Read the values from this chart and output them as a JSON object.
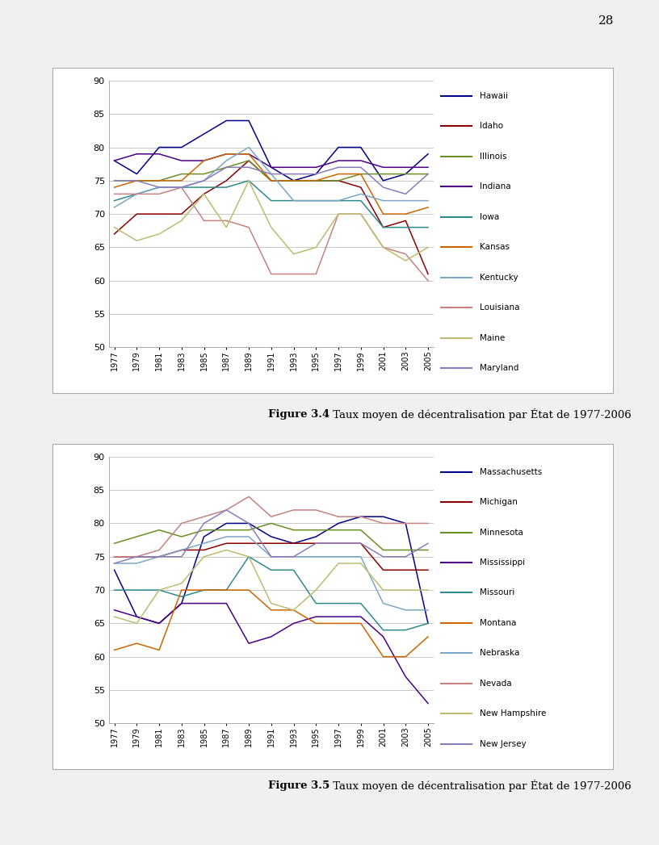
{
  "years": [
    1977,
    1979,
    1981,
    1983,
    1985,
    1987,
    1989,
    1991,
    1993,
    1995,
    1997,
    1999,
    2001,
    2003,
    2005
  ],
  "fig34": {
    "title_bold": "Figure 3.4",
    "title_normal": " Taux moyen de décentralisation par État de 1977-2006",
    "series": {
      "Hawaii": [
        78,
        76,
        80,
        80,
        82,
        84,
        84,
        77,
        75,
        76,
        80,
        80,
        75,
        76,
        79
      ],
      "Idaho": [
        67,
        70,
        70,
        70,
        73,
        75,
        78,
        75,
        75,
        75,
        75,
        74,
        68,
        69,
        61
      ],
      "Illinois": [
        75,
        75,
        75,
        76,
        76,
        77,
        78,
        75,
        75,
        75,
        75,
        76,
        76,
        76,
        76
      ],
      "Indiana": [
        78,
        79,
        79,
        78,
        78,
        79,
        79,
        77,
        77,
        77,
        78,
        78,
        77,
        77,
        77
      ],
      "Iowa": [
        72,
        73,
        74,
        74,
        74,
        74,
        75,
        72,
        72,
        72,
        72,
        72,
        68,
        68,
        68
      ],
      "Kansas": [
        74,
        75,
        75,
        75,
        78,
        79,
        79,
        75,
        75,
        75,
        76,
        76,
        70,
        70,
        71
      ],
      "Kentucky": [
        71,
        73,
        74,
        74,
        75,
        78,
        80,
        76,
        72,
        72,
        72,
        73,
        72,
        72,
        72
      ],
      "Louisiana": [
        73,
        73,
        73,
        74,
        69,
        69,
        68,
        61,
        61,
        61,
        70,
        70,
        65,
        64,
        60
      ],
      "Maine": [
        68,
        66,
        67,
        69,
        73,
        68,
        75,
        68,
        64,
        65,
        70,
        70,
        65,
        63,
        65
      ],
      "Maryland": [
        75,
        75,
        74,
        74,
        75,
        77,
        77,
        76,
        76,
        76,
        77,
        77,
        74,
        73,
        76
      ]
    },
    "colors": {
      "Hawaii": "#00008B",
      "Idaho": "#8B0000",
      "Illinois": "#6B8E23",
      "Indiana": "#4B0082",
      "Iowa": "#2E8B8B",
      "Kansas": "#CD6600",
      "Kentucky": "#7BA7C7",
      "Louisiana": "#C88080",
      "Maine": "#BCBC70",
      "Maryland": "#8B7BBB"
    },
    "ylim": [
      50,
      90
    ],
    "yticks": [
      50,
      55,
      60,
      65,
      70,
      75,
      80,
      85,
      90
    ]
  },
  "fig35": {
    "title_bold": "Figure 3.5",
    "title_normal": " Taux moyen de décentralisation par État de 1977-2006",
    "series": {
      "Massachusetts": [
        73,
        66,
        65,
        68,
        78,
        80,
        80,
        78,
        77,
        78,
        80,
        81,
        81,
        80,
        65
      ],
      "Michigan": [
        75,
        75,
        75,
        76,
        76,
        77,
        77,
        77,
        77,
        77,
        77,
        77,
        73,
        73,
        73
      ],
      "Minnesota": [
        77,
        78,
        79,
        78,
        79,
        79,
        79,
        80,
        79,
        79,
        79,
        79,
        76,
        76,
        76
      ],
      "Mississippi": [
        67,
        66,
        65,
        68,
        68,
        68,
        62,
        63,
        65,
        66,
        66,
        66,
        63,
        57,
        53
      ],
      "Missouri": [
        70,
        70,
        70,
        69,
        70,
        70,
        75,
        73,
        73,
        68,
        68,
        68,
        64,
        64,
        65
      ],
      "Montana": [
        61,
        62,
        61,
        70,
        70,
        70,
        70,
        67,
        67,
        65,
        65,
        65,
        60,
        60,
        63
      ],
      "Nebraska": [
        74,
        74,
        75,
        76,
        77,
        78,
        78,
        75,
        75,
        75,
        75,
        75,
        68,
        67,
        67
      ],
      "Nevada": [
        75,
        75,
        76,
        80,
        81,
        82,
        84,
        81,
        82,
        82,
        81,
        81,
        80,
        80,
        80
      ],
      "New Hampshire": [
        66,
        65,
        70,
        71,
        75,
        76,
        75,
        68,
        67,
        70,
        74,
        74,
        70,
        70,
        70
      ],
      "New Jersey": [
        74,
        75,
        75,
        75,
        80,
        82,
        80,
        75,
        75,
        77,
        77,
        77,
        75,
        75,
        77
      ]
    },
    "colors": {
      "Massachusetts": "#00008B",
      "Michigan": "#8B0000",
      "Minnesota": "#6B8E23",
      "Mississippi": "#4B0082",
      "Missouri": "#2E8B8B",
      "Montana": "#CD6600",
      "Nebraska": "#7BA7C7",
      "Nevada": "#C88080",
      "New Hampshire": "#BCBC70",
      "New Jersey": "#8B7BBB"
    },
    "ylim": [
      50,
      90
    ],
    "yticks": [
      50,
      55,
      60,
      65,
      70,
      75,
      80,
      85,
      90
    ]
  },
  "page_number": "28",
  "page_bg": "#f0f0f0",
  "chart_bg": "#ffffff",
  "border_color": "#aaaaaa"
}
